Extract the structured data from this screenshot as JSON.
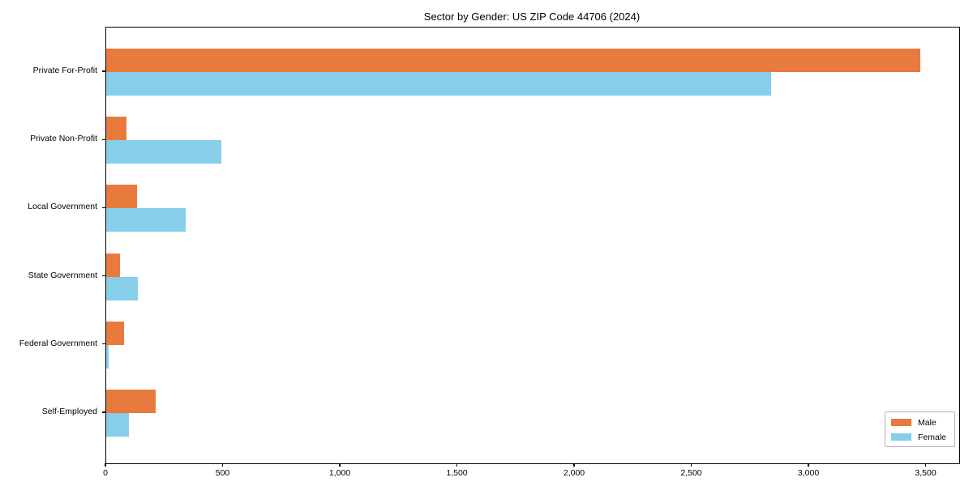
{
  "title": "Sector by Gender: US ZIP Code 44706 (2024)",
  "chart_data": {
    "type": "bar",
    "orientation": "horizontal",
    "title": "Sector by Gender: US ZIP Code 44706 (2024)",
    "xlabel": "",
    "ylabel": "",
    "categories": [
      "Private For-Profit",
      "Private Non-Profit",
      "Local Government",
      "State Government",
      "Federal Government",
      "Self-Employed"
    ],
    "series": [
      {
        "name": "Male",
        "color": "#e87a3d",
        "values": [
          3475,
          88,
          130,
          60,
          77,
          212
        ]
      },
      {
        "name": "Female",
        "color": "#87ceeb",
        "values": [
          2838,
          492,
          339,
          136,
          10,
          97
        ]
      }
    ],
    "xlim": [
      0,
      3640
    ],
    "xticks": [
      0,
      500,
      1000,
      1500,
      2000,
      2500,
      3000,
      3500
    ],
    "xtick_labels": [
      "0",
      "500",
      "1,000",
      "1,500",
      "2,000",
      "2,500",
      "3,000",
      "3,500"
    ],
    "grid": false,
    "legend_position": "lower right"
  },
  "legend": {
    "male_label": "Male",
    "female_label": "Female"
  }
}
